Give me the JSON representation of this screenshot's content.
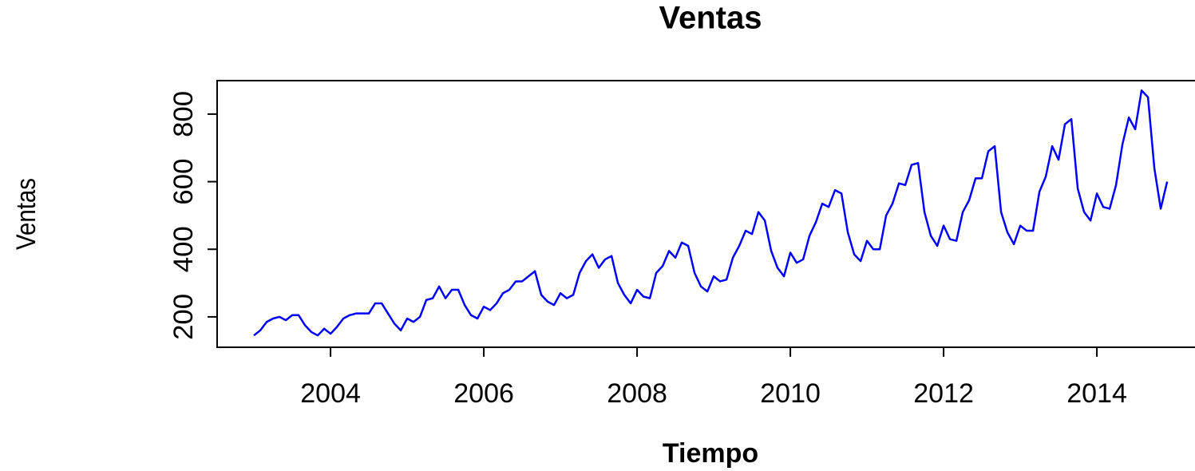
{
  "chart_data": {
    "type": "line",
    "title": "Ventas",
    "x_label": "Tiempo",
    "y_label": "Ventas",
    "x": [
      2003,
      2003.083,
      2003.167,
      2003.25,
      2003.333,
      2003.417,
      2003.5,
      2003.583,
      2003.667,
      2003.75,
      2003.833,
      2003.917,
      2004,
      2004.083,
      2004.167,
      2004.25,
      2004.333,
      2004.417,
      2004.5,
      2004.583,
      2004.667,
      2004.75,
      2004.833,
      2004.917,
      2005,
      2005.083,
      2005.167,
      2005.25,
      2005.333,
      2005.417,
      2005.5,
      2005.583,
      2005.667,
      2005.75,
      2005.833,
      2005.917,
      2006,
      2006.083,
      2006.167,
      2006.25,
      2006.333,
      2006.417,
      2006.5,
      2006.583,
      2006.667,
      2006.75,
      2006.833,
      2006.917,
      2007,
      2007.083,
      2007.167,
      2007.25,
      2007.333,
      2007.417,
      2007.5,
      2007.583,
      2007.667,
      2007.75,
      2007.833,
      2007.917,
      2008,
      2008.083,
      2008.167,
      2008.25,
      2008.333,
      2008.417,
      2008.5,
      2008.583,
      2008.667,
      2008.75,
      2008.833,
      2008.917,
      2009,
      2009.083,
      2009.167,
      2009.25,
      2009.333,
      2009.417,
      2009.5,
      2009.583,
      2009.667,
      2009.75,
      2009.833,
      2009.917,
      2010,
      2010.083,
      2010.167,
      2010.25,
      2010.333,
      2010.417,
      2010.5,
      2010.583,
      2010.667,
      2010.75,
      2010.833,
      2010.917,
      2011,
      2011.083,
      2011.167,
      2011.25,
      2011.333,
      2011.417,
      2011.5,
      2011.583,
      2011.667,
      2011.75,
      2011.833,
      2011.917,
      2012,
      2012.083,
      2012.167,
      2012.25,
      2012.333,
      2012.417,
      2012.5,
      2012.583,
      2012.667,
      2012.75,
      2012.833,
      2012.917,
      2013,
      2013.083,
      2013.167,
      2013.25,
      2013.333,
      2013.417,
      2013.5,
      2013.583,
      2013.667,
      2013.75,
      2013.833,
      2013.917,
      2014,
      2014.083,
      2014.167,
      2014.25,
      2014.333,
      2014.417,
      2014.5,
      2014.583,
      2014.667,
      2014.75,
      2014.833,
      2014.917
    ],
    "series": [
      {
        "color": "#0000ff",
        "values": [
          145,
          160,
          185,
          195,
          200,
          190,
          205,
          205,
          175,
          155,
          145,
          165,
          150,
          170,
          195,
          205,
          210,
          210,
          210,
          240,
          240,
          210,
          180,
          160,
          195,
          185,
          200,
          250,
          255,
          290,
          255,
          280,
          280,
          235,
          205,
          195,
          230,
          220,
          240,
          270,
          280,
          305,
          305,
          320,
          335,
          265,
          245,
          235,
          270,
          255,
          265,
          330,
          365,
          385,
          345,
          370,
          380,
          300,
          265,
          240,
          280,
          260,
          255,
          330,
          350,
          395,
          375,
          420,
          410,
          330,
          290,
          275,
          320,
          305,
          310,
          375,
          410,
          455,
          445,
          510,
          485,
          395,
          345,
          320,
          390,
          360,
          370,
          440,
          480,
          535,
          525,
          575,
          565,
          450,
          385,
          365,
          425,
          400,
          400,
          500,
          535,
          595,
          590,
          650,
          655,
          510,
          440,
          410,
          470,
          430,
          425,
          510,
          545,
          610,
          610,
          690,
          705,
          510,
          450,
          415,
          470,
          455,
          455,
          570,
          615,
          705,
          665,
          770,
          785,
          580,
          510,
          485,
          565,
          525,
          520,
          590,
          710,
          790,
          755,
          870,
          850,
          640,
          520,
          600
        ]
      }
    ],
    "xlim": [
      2002.52,
      2015.39
    ],
    "ylim": [
      110,
      899
    ],
    "xticks": [
      2004,
      2006,
      2008,
      2010,
      2012,
      2014
    ],
    "yticks": [
      200,
      400,
      600,
      800
    ]
  }
}
